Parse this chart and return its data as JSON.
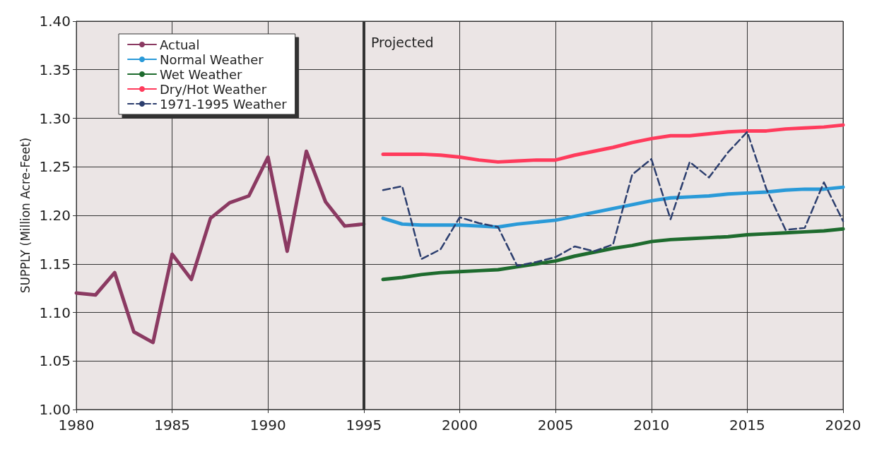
{
  "chart_data": {
    "type": "line",
    "ylabel": "SUPPLY (Million Acre-Feet)",
    "xlim": [
      1980,
      2020
    ],
    "xticks": [
      1980,
      1985,
      1990,
      1995,
      2000,
      2005,
      2010,
      2015,
      2020
    ],
    "ylim": [
      1.0,
      1.4
    ],
    "yticks": [
      {
        "value": 1.0,
        "label": "1.00"
      },
      1.05,
      {
        "value": 1.1,
        "label": "1.10"
      },
      1.15,
      {
        "value": 1.2,
        "label": "1.20"
      },
      1.25,
      {
        "value": 1.3,
        "label": "1.30"
      },
      1.35,
      {
        "value": 1.4,
        "label": "1.40"
      }
    ],
    "grid": true,
    "legend": "top left",
    "marker": "none",
    "ref_lines": [
      {
        "axis": "x",
        "value": 1995,
        "label": "Projected",
        "color": "#333333"
      }
    ],
    "series": [
      {
        "name": "Actual",
        "color": "#8b3a62",
        "line_style": "solid",
        "x": [
          1980,
          1981,
          1982,
          1983,
          1984,
          1985,
          1986,
          1987,
          1988,
          1989,
          1990,
          1991,
          1992,
          1993,
          1994,
          1995
        ],
        "values": [
          1.12,
          1.118,
          1.141,
          1.08,
          1.069,
          1.16,
          1.134,
          1.197,
          1.213,
          1.22,
          1.26,
          1.163,
          1.266,
          1.214,
          1.189,
          1.191
        ]
      },
      {
        "name": "Normal Weather",
        "color": "#2a9ad8",
        "line_style": "solid",
        "x": [
          1996,
          1997,
          1998,
          1999,
          2000,
          2001,
          2002,
          2003,
          2004,
          2005,
          2006,
          2007,
          2008,
          2009,
          2010,
          2011,
          2012,
          2013,
          2014,
          2015,
          2016,
          2017,
          2018,
          2019,
          2020
        ],
        "values": [
          1.197,
          1.191,
          1.19,
          1.19,
          1.19,
          1.189,
          1.188,
          1.191,
          1.193,
          1.195,
          1.199,
          1.203,
          1.207,
          1.211,
          1.215,
          1.218,
          1.219,
          1.22,
          1.222,
          1.223,
          1.224,
          1.226,
          1.227,
          1.227,
          1.229
        ]
      },
      {
        "name": "Wet Weather",
        "color": "#1e6b2e",
        "line_style": "solid",
        "x": [
          1996,
          1997,
          1998,
          1999,
          2000,
          2001,
          2002,
          2003,
          2004,
          2005,
          2006,
          2007,
          2008,
          2009,
          2010,
          2011,
          2012,
          2013,
          2014,
          2015,
          2016,
          2017,
          2018,
          2019,
          2020
        ],
        "values": [
          1.134,
          1.136,
          1.139,
          1.141,
          1.142,
          1.143,
          1.144,
          1.147,
          1.15,
          1.153,
          1.158,
          1.162,
          1.166,
          1.169,
          1.173,
          1.175,
          1.176,
          1.177,
          1.178,
          1.18,
          1.181,
          1.182,
          1.183,
          1.184,
          1.186
        ]
      },
      {
        "name": "Dry/Hot Weather",
        "color": "#ff3b5c",
        "line_style": "solid",
        "x": [
          1996,
          1997,
          1998,
          1999,
          2000,
          2001,
          2002,
          2003,
          2004,
          2005,
          2006,
          2007,
          2008,
          2009,
          2010,
          2011,
          2012,
          2013,
          2014,
          2015,
          2016,
          2017,
          2018,
          2019,
          2020
        ],
        "values": [
          1.263,
          1.263,
          1.263,
          1.262,
          1.26,
          1.257,
          1.255,
          1.256,
          1.257,
          1.257,
          1.262,
          1.266,
          1.27,
          1.275,
          1.279,
          1.282,
          1.282,
          1.284,
          1.286,
          1.287,
          1.287,
          1.289,
          1.29,
          1.291,
          1.293
        ]
      },
      {
        "name": "1971-1995 Weather",
        "color": "#2c3e6e",
        "line_style": "dashed",
        "x": [
          1996,
          1997,
          1998,
          1999,
          2000,
          2001,
          2002,
          2003,
          2004,
          2005,
          2006,
          2007,
          2008,
          2009,
          2010,
          2011,
          2012,
          2013,
          2014,
          2015,
          2016,
          2017,
          2018,
          2019,
          2020
        ],
        "values": [
          1.226,
          1.23,
          1.155,
          1.165,
          1.198,
          1.192,
          1.188,
          1.148,
          1.152,
          1.157,
          1.168,
          1.163,
          1.17,
          1.242,
          1.258,
          1.196,
          1.255,
          1.239,
          1.265,
          1.286,
          1.227,
          1.185,
          1.187,
          1.234,
          1.194
        ]
      }
    ]
  }
}
